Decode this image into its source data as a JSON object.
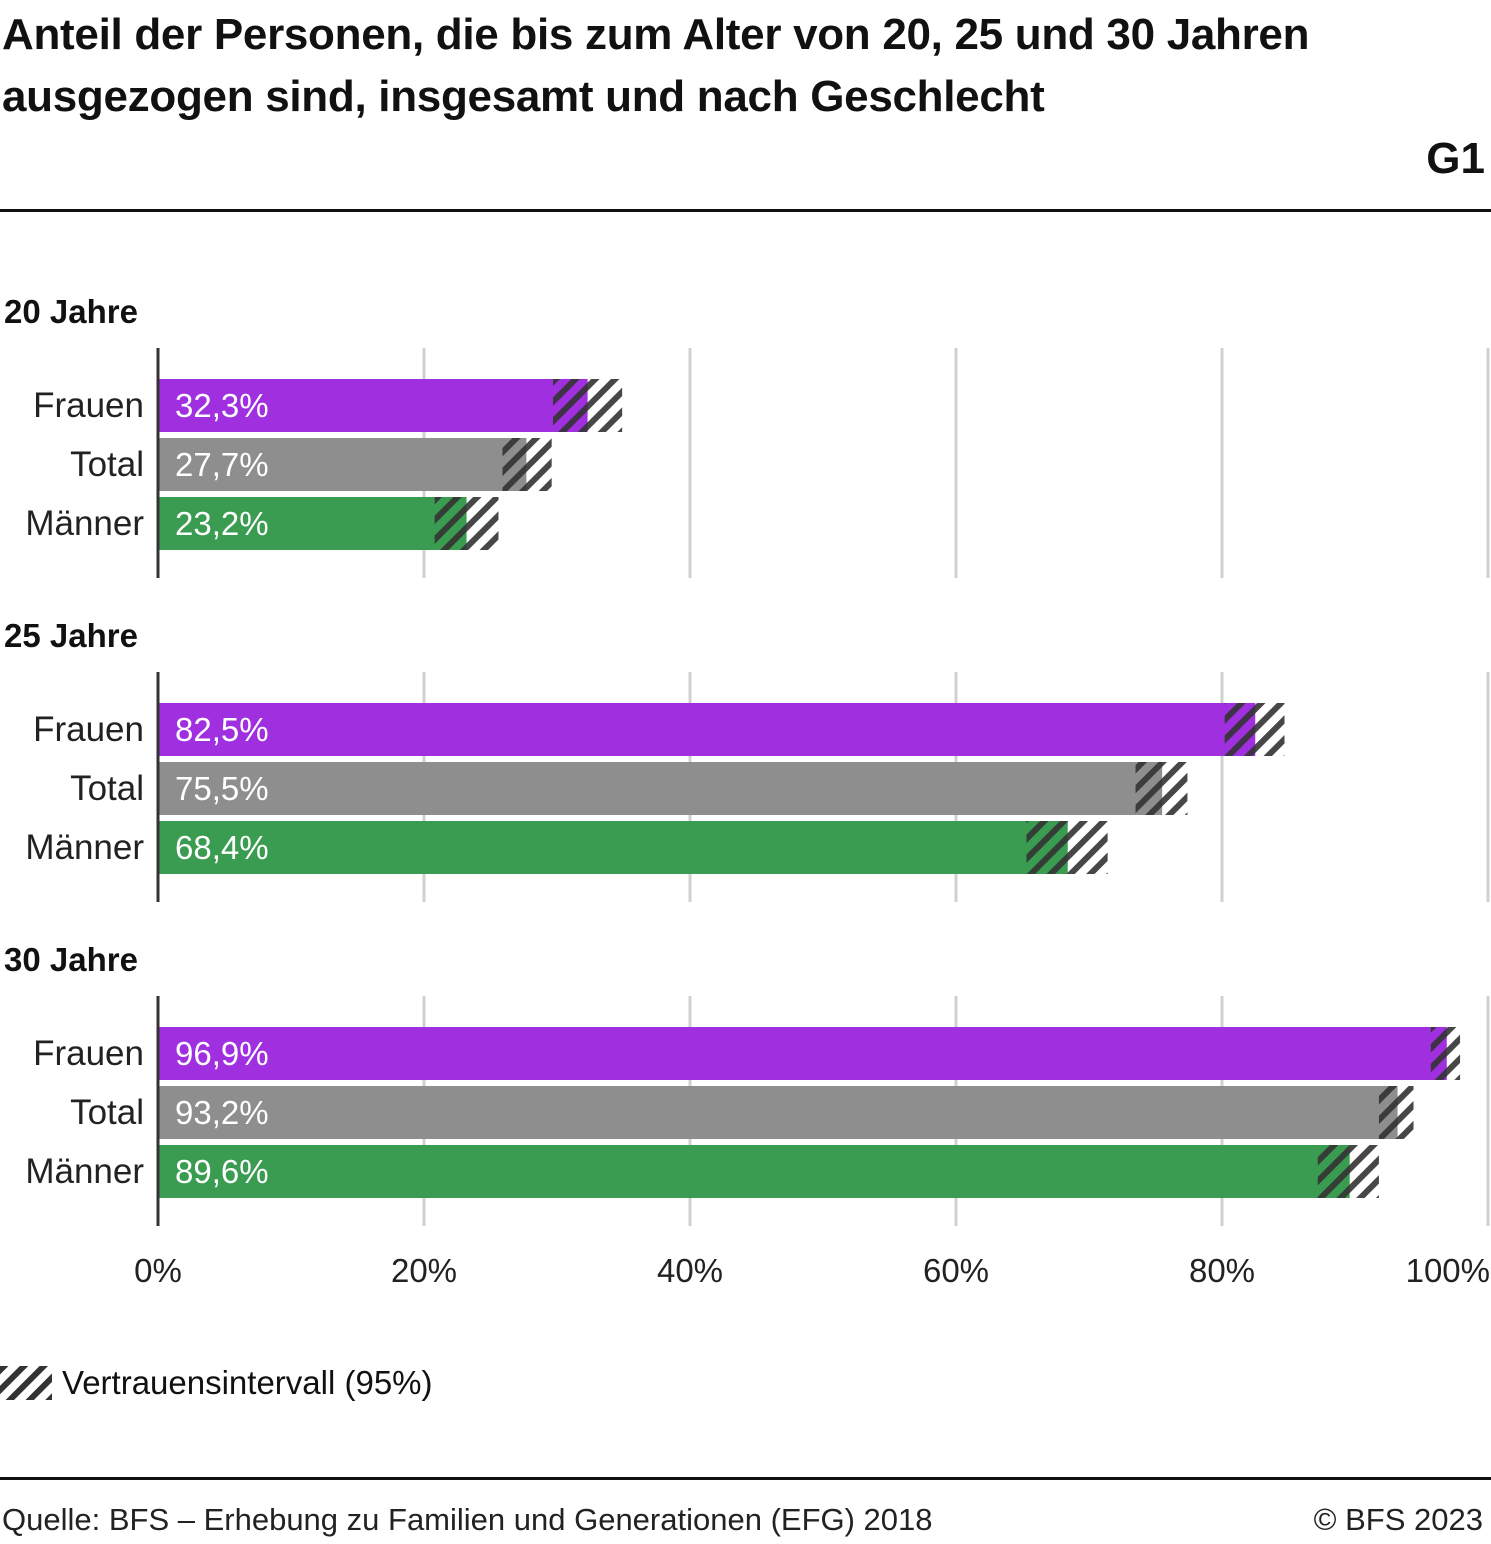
{
  "header": {
    "title": "Anteil der Personen, die bis zum Alter von 20, 25 und 30 Jahren ausgezogen sind, insgesamt und nach Geschlecht",
    "graphic_id": "G1"
  },
  "legend": {
    "icon": "hatch-pattern-icon",
    "label": "Vertrauensintervall (95%)"
  },
  "footer": {
    "source": "Quelle: BFS – Erhebung zu Familien und Generationen (EFG) 2018",
    "copyright": "© BFS 2023"
  },
  "colors": {
    "Frauen": "#A030DF",
    "Total": "#8E8E8E",
    "Männer": "#3A9C50",
    "hatch": "#333333",
    "grid": "#D0D0D0",
    "axis": "#333333"
  },
  "chart_data": {
    "type": "bar",
    "orientation": "horizontal",
    "title": "Anteil der Personen, die bis zum Alter von 20, 25 und 30 Jahren ausgezogen sind, insgesamt und nach Geschlecht",
    "xlabel": "",
    "ylabel": "",
    "xlim": [
      0,
      100
    ],
    "x_ticks": [
      0,
      20,
      40,
      60,
      80,
      100
    ],
    "x_tick_labels": [
      "0%",
      "20%",
      "40%",
      "60%",
      "80%",
      "100%"
    ],
    "grid": true,
    "legend_position": "bottom-left",
    "categories": [
      "Frauen",
      "Total",
      "Männer"
    ],
    "panels": [
      {
        "label": "20 Jahre",
        "series": [
          {
            "name": "Frauen",
            "value": 32.3,
            "value_label": "32,3%",
            "ci": [
              29.7,
              34.9
            ]
          },
          {
            "name": "Total",
            "value": 27.7,
            "value_label": "27,7%",
            "ci": [
              25.9,
              29.6
            ]
          },
          {
            "name": "Männer",
            "value": 23.2,
            "value_label": "23,2%",
            "ci": [
              20.8,
              25.6
            ]
          }
        ]
      },
      {
        "label": "25 Jahre",
        "series": [
          {
            "name": "Frauen",
            "value": 82.5,
            "value_label": "82,5%",
            "ci": [
              80.2,
              84.7
            ]
          },
          {
            "name": "Total",
            "value": 75.5,
            "value_label": "75,5%",
            "ci": [
              73.5,
              77.4
            ]
          },
          {
            "name": "Männer",
            "value": 68.4,
            "value_label": "68,4%",
            "ci": [
              65.3,
              71.4
            ]
          }
        ]
      },
      {
        "label": "30 Jahre",
        "series": [
          {
            "name": "Frauen",
            "value": 96.9,
            "value_label": "96,9%",
            "ci": [
              95.7,
              97.9
            ]
          },
          {
            "name": "Total",
            "value": 93.2,
            "value_label": "93,2%",
            "ci": [
              91.8,
              94.4
            ]
          },
          {
            "name": "Männer",
            "value": 89.6,
            "value_label": "89,6%",
            "ci": [
              87.2,
              91.8
            ]
          }
        ]
      }
    ]
  }
}
